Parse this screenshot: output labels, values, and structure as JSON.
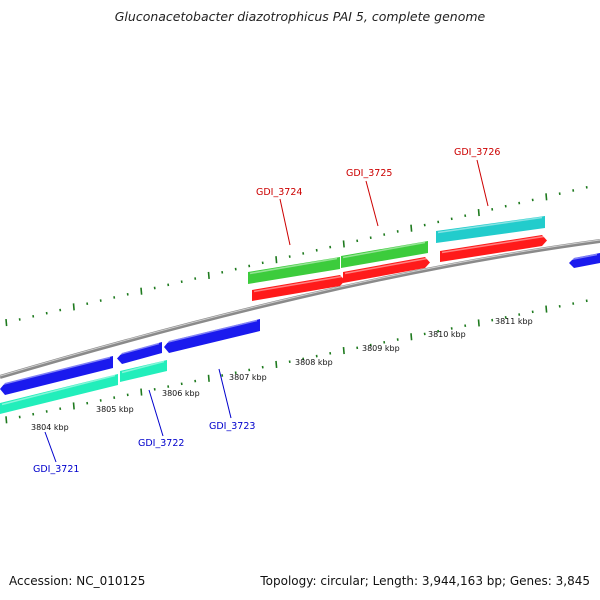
{
  "title": "Gluconacetobacter diazotrophicus PAI 5, complete genome",
  "footer": {
    "accession": "Accession: NC_010125",
    "summary": "Topology: circular; Length: 3,944,163 bp; Genes: 3,845"
  },
  "colors": {
    "backbone": "#8a8a8a",
    "tick": "#1e7a1e",
    "forward_label": "#cc0000",
    "reverse_label": "#0000cc",
    "forward_cds": "#ff1a1a",
    "reverse_cds": "#1a1aee",
    "forward_gene_green": "#3ccc3c",
    "forward_gene_cyan": "#22cccc",
    "reverse_gene_aqua": "#22eebb"
  },
  "scale_labels": [
    {
      "id": "3804",
      "text": "3804 kbp"
    },
    {
      "id": "3805",
      "text": "3805 kbp"
    },
    {
      "id": "3806",
      "text": "3806 kbp"
    },
    {
      "id": "3807",
      "text": "3807 kbp"
    },
    {
      "id": "3808",
      "text": "3808 kbp"
    },
    {
      "id": "3809",
      "text": "3809 kbp"
    },
    {
      "id": "3810",
      "text": "3810 kbp"
    },
    {
      "id": "3811",
      "text": "3811 kbp"
    }
  ],
  "gene_labels": [
    {
      "id": "gdi-3721",
      "text": "GDI_3721",
      "strand": "reverse"
    },
    {
      "id": "gdi-3722",
      "text": "GDI_3722",
      "strand": "reverse"
    },
    {
      "id": "gdi-3723",
      "text": "GDI_3723",
      "strand": "reverse"
    },
    {
      "id": "gdi-3724",
      "text": "GDI_3724",
      "strand": "forward"
    },
    {
      "id": "gdi-3725",
      "text": "GDI_3725",
      "strand": "forward"
    },
    {
      "id": "gdi-3726",
      "text": "GDI_3726",
      "strand": "forward"
    }
  ]
}
